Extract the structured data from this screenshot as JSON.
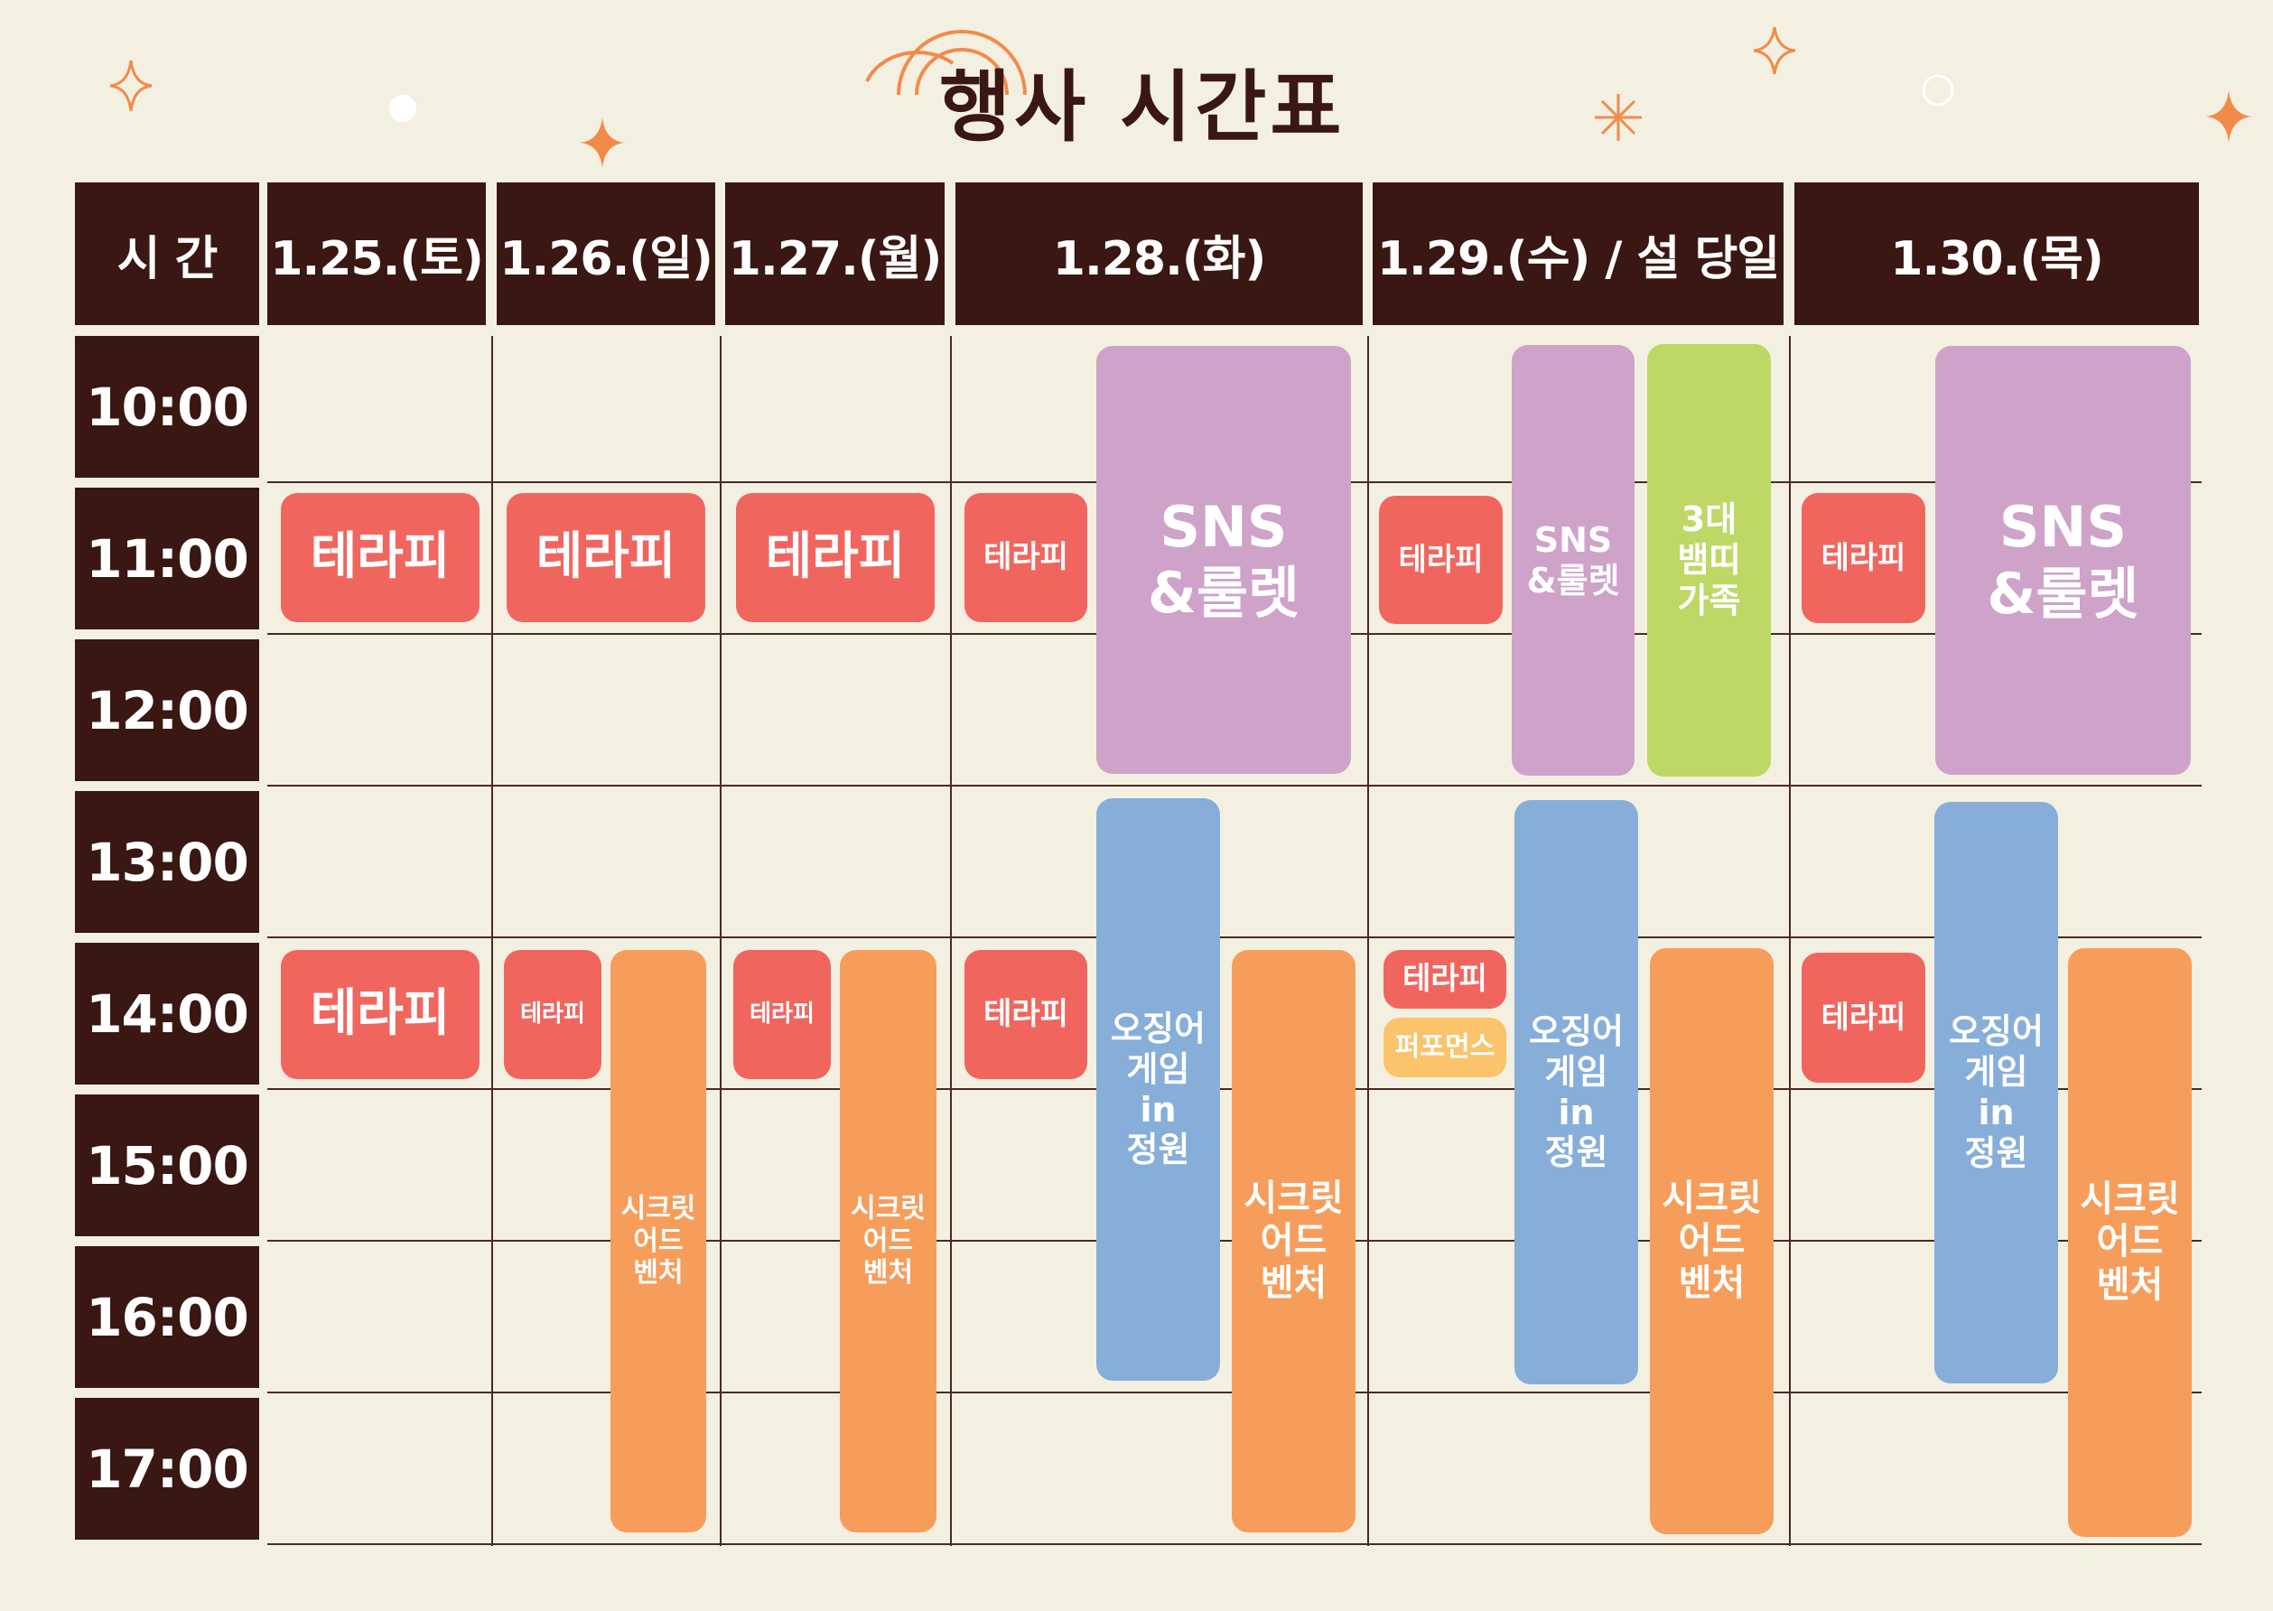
{
  "title": "행사 시간표",
  "time_header": "시 간",
  "days": [
    "1.25.(토)",
    "1.26.(일)",
    "1.27.(월)",
    "1.28.(화)",
    "1.29.(수) / 설 당일",
    "1.30.(목)"
  ],
  "times": [
    "10:00",
    "11:00",
    "12:00",
    "13:00",
    "14:00",
    "15:00",
    "16:00",
    "17:00"
  ],
  "events": {
    "d1_therapy_11": "테라피",
    "d1_therapy_14": "테라피",
    "d2_therapy_11": "테라피",
    "d2_therapy_14": "테라피",
    "d2_secret": "시크릿\n어드\n벤처",
    "d3_therapy_11": "테라피",
    "d3_therapy_14": "테라피",
    "d3_secret": "시크릿\n어드\n벤처",
    "d4_therapy_11": "테라피",
    "d4_sns": "SNS\n&룰렛",
    "d4_therapy_14": "테라피",
    "d4_squid": "오징어\n게임\nin\n정원",
    "d4_secret": "시크릿\n어드\n벤처",
    "d5_therapy_11": "테라피",
    "d5_sns": "SNS\n&룰렛",
    "d5_family": "3대\n뱀띠\n가족",
    "d5_therapy_14": "테라피",
    "d5_perf": "퍼포먼스",
    "d5_squid": "오징어\n게임\nin\n정원",
    "d5_secret": "시크릿\n어드\n벤처",
    "d6_therapy_11": "테라피",
    "d6_sns": "SNS\n&룰렛",
    "d6_therapy_14": "테라피",
    "d6_squid": "오징어\n게임\nin\n정원",
    "d6_secret": "시크릿\n어드\n벤처"
  },
  "colors": {
    "background": "#f3f0e2",
    "header": "#3a1712",
    "therapy": "#f0665f",
    "sns": "#cea2c9",
    "squid": "#86aed9",
    "secret": "#f79d5b",
    "family": "#bed866",
    "performance": "#fbc36a",
    "accent": "#f28b4a"
  },
  "icons": [
    "sparkle-icon",
    "star-icon",
    "circle-icon",
    "radio-waves-icon"
  ]
}
